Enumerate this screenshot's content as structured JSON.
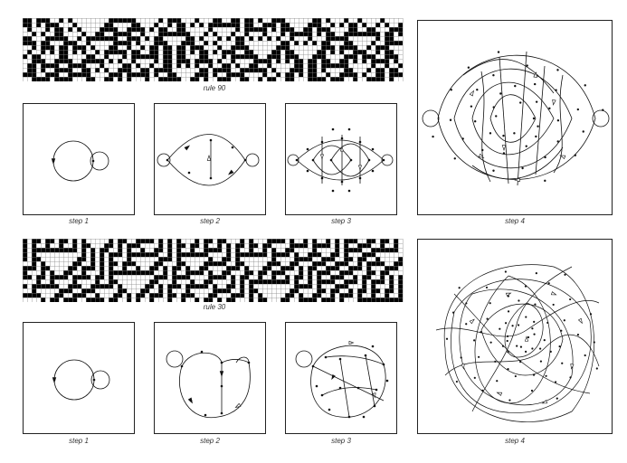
{
  "top": {
    "strip_label": "rule 90",
    "step_labels": [
      "step 1",
      "step 2",
      "step 3",
      "step 4"
    ],
    "strip_rule": 90
  },
  "bottom": {
    "strip_label": "rule 30",
    "step_labels": [
      "step 1",
      "step 2",
      "step 3",
      "step 4"
    ],
    "strip_rule": 30
  },
  "colors": {
    "cell_on": "#000000",
    "cell_off": "#ffffff",
    "grid": "#8a8a8a",
    "line": "#111111"
  }
}
